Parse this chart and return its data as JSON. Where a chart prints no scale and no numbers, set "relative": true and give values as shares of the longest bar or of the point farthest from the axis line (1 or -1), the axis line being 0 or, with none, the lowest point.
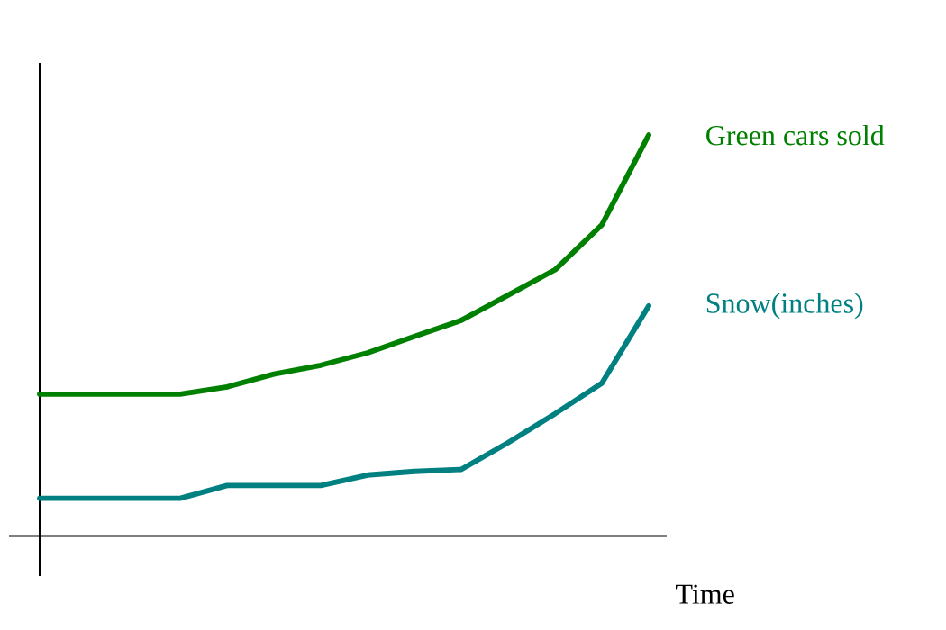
{
  "chart_data": {
    "type": "line",
    "relative": true,
    "xlabel": "Time",
    "categories": [
      null,
      null,
      null,
      null,
      null,
      null,
      null,
      null,
      null,
      null,
      null,
      null,
      null,
      null
    ],
    "series": [
      {
        "name": "Green cars sold",
        "color": "#008000",
        "values": [
          0.354,
          0.354,
          0.354,
          0.354,
          0.372,
          0.404,
          0.426,
          0.457,
          0.498,
          0.538,
          0.601,
          0.664,
          0.776,
          1
        ]
      },
      {
        "name": "Snow(inches)",
        "color": "#008080",
        "values": [
          0.094,
          0.094,
          0.094,
          0.094,
          0.126,
          0.126,
          0.126,
          0.152,
          0.161,
          0.166,
          0.233,
          0.305,
          0.381,
          0.574
        ]
      }
    ]
  }
}
